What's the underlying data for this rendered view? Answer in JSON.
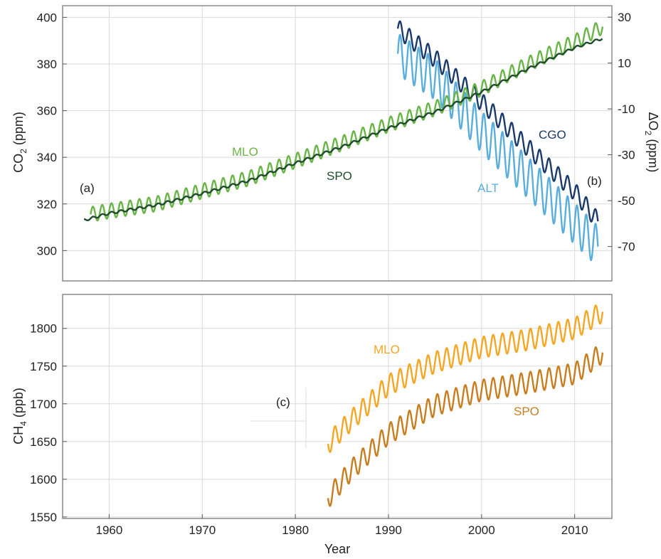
{
  "chart_data": [
    {
      "panel": "a-b",
      "type": "line",
      "xlabel": "",
      "ylabel": "CO2 (ppm)",
      "ylabel_main": "CO",
      "ylabel_sub": "2",
      "ylabel_unit": " (ppm)",
      "y2label": "ΔO2 (ppm)",
      "y2label_main": "ΔO",
      "y2label_sub": "2",
      "y2label_unit": " (ppm)",
      "xlim": [
        1955,
        2014
      ],
      "ylim": [
        287,
        405
      ],
      "y2lim": [
        -85,
        35
      ],
      "yticks": [
        300,
        320,
        340,
        360,
        380,
        400
      ],
      "y2ticks": [
        -70,
        -50,
        -30,
        -10,
        10,
        30
      ],
      "xgrid": [
        1960,
        1970,
        1980,
        1990,
        2000,
        2010
      ],
      "grid": true,
      "panel_labels": [
        "(a)",
        "(b)"
      ],
      "series": [
        {
          "name": "MLO",
          "axis": "left",
          "color": "#6ab547",
          "trend": [
            [
              1958,
              315.5
            ],
            [
              1960,
              317
            ],
            [
              1965,
              320
            ],
            [
              1970,
              325.5
            ],
            [
              1975,
              331
            ],
            [
              1980,
              338.5
            ],
            [
              1985,
              346
            ],
            [
              1990,
              354
            ],
            [
              1995,
              361
            ],
            [
              2000,
              369.5
            ],
            [
              2005,
              380
            ],
            [
              2010,
              389.5
            ],
            [
              2013,
              396
            ]
          ],
          "amplitude": 3.2
        },
        {
          "name": "SPO",
          "axis": "left",
          "color": "#1f4d2c",
          "trend": [
            [
              1957.3,
              313
            ],
            [
              1960,
              316
            ],
            [
              1965,
              319.5
            ],
            [
              1970,
              324.5
            ],
            [
              1975,
              330
            ],
            [
              1980,
              337.5
            ],
            [
              1985,
              344.5
            ],
            [
              1990,
              352.5
            ],
            [
              1995,
              359.5
            ],
            [
              2000,
              368
            ],
            [
              2005,
              378
            ],
            [
              2010,
              387
            ],
            [
              2013,
              391
            ]
          ],
          "amplitude": 0.5
        },
        {
          "name": "CGO",
          "axis": "right",
          "color": "#1a3a6b",
          "trend": [
            [
              1991,
              25
            ],
            [
              1995,
              12
            ],
            [
              2000,
              -7
            ],
            [
              2005,
              -27
            ],
            [
              2010,
              -46
            ],
            [
              2012.5,
              -59
            ]
          ],
          "amplitude": 4
        },
        {
          "name": "ALT",
          "axis": "right",
          "color": "#5aaedb",
          "trend": [
            [
              1991,
              14
            ],
            [
              1995,
              3
            ],
            [
              2000,
              -20
            ],
            [
              2005,
              -40
            ],
            [
              2010,
              -60
            ],
            [
              2012.5,
              -70
            ]
          ],
          "amplitude": 9
        }
      ]
    },
    {
      "panel": "c",
      "type": "line",
      "xlabel": "Year",
      "ylabel": "CH4 (ppb)",
      "ylabel_main": "CH",
      "ylabel_sub": "4",
      "ylabel_unit": " (ppb)",
      "xlim": [
        1955,
        2014
      ],
      "ylim": [
        1548,
        1845
      ],
      "yticks": [
        1550,
        1600,
        1650,
        1700,
        1750,
        1800
      ],
      "xticks": [
        1960,
        1970,
        1980,
        1990,
        2000,
        2010
      ],
      "grid": true,
      "panel_labels": [
        "(c)"
      ],
      "series": [
        {
          "name": "MLO",
          "color": "#f5a623",
          "trend": [
            [
              1983.5,
              1647
            ],
            [
              1986,
              1678
            ],
            [
              1990,
              1725
            ],
            [
              1995,
              1755
            ],
            [
              2000,
              1775
            ],
            [
              2005,
              1785
            ],
            [
              2010,
              1800
            ],
            [
              2013,
              1822
            ]
          ],
          "amplitude": 14
        },
        {
          "name": "SPO",
          "color": "#c87d1e",
          "trend": [
            [
              1983.5,
              1575
            ],
            [
              1986,
              1612
            ],
            [
              1990,
              1660
            ],
            [
              1995,
              1698
            ],
            [
              2000,
              1718
            ],
            [
              2005,
              1728
            ],
            [
              2010,
              1740
            ],
            [
              2013,
              1768
            ]
          ],
          "amplitude": 14
        }
      ]
    }
  ]
}
